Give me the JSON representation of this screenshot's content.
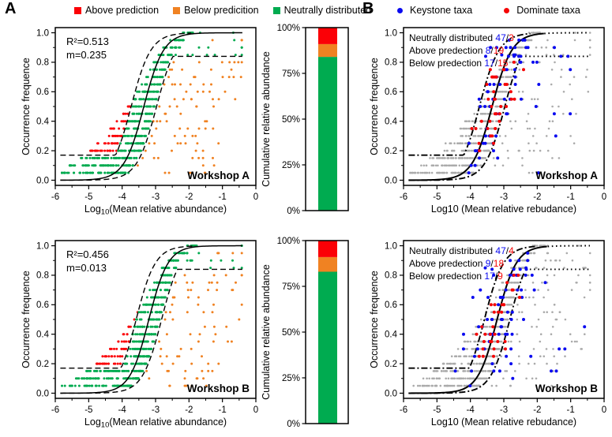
{
  "panel_a": {
    "label": "A",
    "legend": [
      {
        "label": "Above prediction",
        "color": "#fb0006"
      },
      {
        "label": "Below predicition",
        "color": "#f08222"
      },
      {
        "label": "Neutrally distributed",
        "color": "#00ab50"
      }
    ]
  },
  "panel_b": {
    "label": "B",
    "legend": [
      {
        "label": "Keystone taxa",
        "color": "#0a0af0"
      },
      {
        "label": "Dominate taxa",
        "color": "#f50505"
      }
    ]
  },
  "chart_data": [
    {
      "id": "workshop-a-neutral-scatter",
      "type": "scatter",
      "mode": "neutral",
      "workshop_label": "Workshop A",
      "annotation_lines": [
        "R²=0.513",
        "m=0.235"
      ],
      "stats": {
        "r2": 0.513,
        "m": 0.235
      },
      "xlabel_parts": [
        "Log",
        "10",
        "(Mean relative abundance)"
      ],
      "ylabel": "Occurrence frequence",
      "xlim": [
        -6,
        0
      ],
      "ylim": [
        0,
        1
      ],
      "xticks": [
        -6,
        -5,
        -4,
        -3,
        -2,
        -1,
        0
      ],
      "yticks": [
        0,
        0.2,
        0.4,
        0.6,
        0.8,
        1
      ],
      "model": {
        "x0": -3.35,
        "k": 3.4,
        "ci_dx": 0.38,
        "upper_left_flat": 0.17,
        "lower_right_flat": 0.84
      },
      "colors": {
        "above": "#fb0006",
        "below": "#f08222",
        "neutral": "#00ab50",
        "curve": "#000000"
      },
      "seed": 7,
      "points_note": "procedural scatter bands (0.05 steps) colored by neutral-model 95% envelope"
    },
    {
      "id": "workshop-a-cumulative-bar",
      "type": "stacked_bar",
      "ylabel": "Cumulative relative abundance",
      "ytick_labels": [
        "0%",
        "25%",
        "50%",
        "75%",
        "100%"
      ],
      "segments": [
        {
          "name": "Neutrally distributed",
          "value": 84,
          "color": "#00ab50"
        },
        {
          "name": "Below predicition",
          "value": 7,
          "color": "#f08222"
        },
        {
          "name": "Above prediction",
          "value": 9,
          "color": "#fb0006"
        }
      ]
    },
    {
      "id": "workshop-a-taxa-scatter",
      "type": "scatter",
      "mode": "taxa",
      "workshop_label": "Workshop A",
      "count_lines": [
        {
          "label": "Neutrally distributed",
          "keystone": "47",
          "dominate": "3"
        },
        {
          "label": "Above predection",
          "keystone": "8",
          "dominate": "19"
        },
        {
          "label": "Below predection",
          "keystone": "17",
          "dominate": "15"
        }
      ],
      "xlabel": "Log10 (Mean relative rebudance)",
      "ylabel": "Occurrence frequence",
      "xlim": [
        -6,
        0
      ],
      "ylim": [
        0,
        1
      ],
      "xticks": [
        -6,
        -5,
        -4,
        -3,
        -2,
        -1,
        0
      ],
      "yticks": [
        0,
        0.2,
        0.4,
        0.6,
        0.8,
        1
      ],
      "model": {
        "x0": -3.35,
        "k": 3.4,
        "ci_dx": 0.38,
        "upper_left_flat": 0.17,
        "lower_right_flat": 0.84
      },
      "colors": {
        "base": "#ababab",
        "keystone": "#0a0af0",
        "dominate": "#f50505",
        "curve": "#000000"
      },
      "seed": 21,
      "points_note": "gray neutral cloud with keystone (blue) and dominate (red) taxa overlaid"
    },
    {
      "id": "workshop-b-neutral-scatter",
      "type": "scatter",
      "mode": "neutral",
      "workshop_label": "Workshop B",
      "annotation_lines": [
        "R²=0.456",
        "m=0.013"
      ],
      "stats": {
        "r2": 0.456,
        "m": 0.013
      },
      "xlabel_parts": [
        "Log",
        "10",
        "(Mean relative abundance)"
      ],
      "ylabel": "Occurrence frequence",
      "xlim": [
        -6,
        0
      ],
      "ylim": [
        0,
        1
      ],
      "xticks": [
        -6,
        -5,
        -4,
        -3,
        -2,
        -1,
        0
      ],
      "yticks": [
        0,
        0.2,
        0.4,
        0.6,
        0.8,
        1
      ],
      "model": {
        "x0": -3.2,
        "k": 3.5,
        "ci_dx": 0.38,
        "upper_left_flat": 0.17,
        "lower_right_flat": 0.84
      },
      "colors": {
        "above": "#fb0006",
        "below": "#f08222",
        "neutral": "#00ab50",
        "curve": "#000000"
      },
      "seed": 13,
      "points_note": "procedural scatter bands (0.05 steps) colored by neutral-model 95% envelope"
    },
    {
      "id": "workshop-b-cumulative-bar",
      "type": "stacked_bar",
      "ylabel": "Cumulative relative abundance",
      "ytick_labels": [
        "0%",
        "25%",
        "50%",
        "75%",
        "100%"
      ],
      "segments": [
        {
          "name": "Neutrally distributed",
          "value": 83,
          "color": "#00ab50"
        },
        {
          "name": "Below predicition",
          "value": 8,
          "color": "#f08222"
        },
        {
          "name": "Above prediction",
          "value": 9,
          "color": "#fb0006"
        }
      ]
    },
    {
      "id": "workshop-b-taxa-scatter",
      "type": "scatter",
      "mode": "taxa",
      "workshop_label": "Workshop B",
      "count_lines": [
        {
          "label": "Neutrally distributed",
          "keystone": "47",
          "dominate": "4"
        },
        {
          "label": "Above predection",
          "keystone": "9",
          "dominate": "18"
        },
        {
          "label": "Below predection",
          "keystone": "17",
          "dominate": "9"
        }
      ],
      "xlabel": "Log10 (Mean relative rebudance)",
      "ylabel": "Occurrence frequence",
      "xlim": [
        -6,
        0
      ],
      "ylim": [
        0,
        1
      ],
      "xticks": [
        -6,
        -5,
        -4,
        -3,
        -2,
        -1,
        0
      ],
      "yticks": [
        0,
        0.2,
        0.4,
        0.6,
        0.8,
        1
      ],
      "model": {
        "x0": -3.2,
        "k": 3.5,
        "ci_dx": 0.38,
        "upper_left_flat": 0.17,
        "lower_right_flat": 0.84
      },
      "colors": {
        "base": "#ababab",
        "keystone": "#0a0af0",
        "dominate": "#f50505",
        "curve": "#000000"
      },
      "seed": 29,
      "points_note": "gray neutral cloud with keystone (blue) and dominate (red) taxa overlaid"
    }
  ]
}
